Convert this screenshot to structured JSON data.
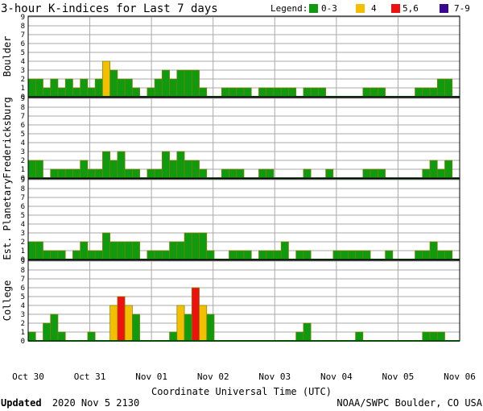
{
  "header": {
    "title": "3-hour K-indices for Last 7 days",
    "legend_label": "Legend:"
  },
  "legend": [
    {
      "label": "0-3",
      "color": "#109a10"
    },
    {
      "label": "4",
      "color": "#f2c000"
    },
    {
      "label": "5,6",
      "color": "#ee1111"
    },
    {
      "label": "7-9",
      "color": "#3a0890"
    }
  ],
  "axis": {
    "xlabel": "Coordinate Universal Time (UTC)",
    "dates": [
      "Oct 30",
      "Oct 31",
      "Nov 01",
      "Nov 02",
      "Nov 03",
      "Nov 04",
      "Nov 05",
      "Nov 06"
    ]
  },
  "footer": {
    "updated_label": "Updated",
    "updated_value": "2020 Nov  5 2130",
    "source": "NOAA/SWPC Boulder, CO USA"
  },
  "colors": {
    "grid": "#a9a9a9",
    "baseline": "#109a10",
    "bar_outline": "#808000"
  },
  "chart_data": {
    "type": "bar",
    "ylim": [
      0,
      9
    ],
    "yticks": [
      0,
      1,
      2,
      3,
      4,
      5,
      6,
      7,
      8,
      9
    ],
    "grid": true,
    "legend_position": "top-right",
    "panels": [
      {
        "name": "Boulder",
        "values": [
          2,
          2,
          1,
          2,
          1,
          2,
          1,
          2,
          1,
          2,
          4,
          3,
          2,
          2,
          1,
          0,
          1,
          2,
          3,
          2,
          3,
          3,
          3,
          1,
          0,
          0,
          1,
          1,
          1,
          1,
          0,
          1,
          1,
          1,
          1,
          1,
          0,
          1,
          1,
          1,
          0,
          0,
          0,
          0,
          0,
          1,
          1,
          1,
          0,
          0,
          0,
          0,
          1,
          1,
          1,
          2,
          2,
          0
        ]
      },
      {
        "name": "Fredericksburg",
        "values": [
          2,
          2,
          0,
          1,
          1,
          1,
          1,
          2,
          1,
          1,
          3,
          2,
          3,
          1,
          1,
          0,
          1,
          1,
          3,
          2,
          3,
          2,
          2,
          1,
          0,
          0,
          1,
          1,
          1,
          0,
          0,
          1,
          1,
          0,
          0,
          0,
          0,
          1,
          0,
          0,
          1,
          0,
          0,
          0,
          0,
          1,
          1,
          1,
          0,
          0,
          0,
          0,
          0,
          1,
          2,
          1,
          2,
          0
        ]
      },
      {
        "name": "Est. Planetary",
        "values": [
          2,
          2,
          1,
          1,
          1,
          0,
          1,
          2,
          1,
          1,
          3,
          2,
          2,
          2,
          2,
          0,
          1,
          1,
          1,
          2,
          2,
          3,
          3,
          3,
          1,
          0,
          0,
          1,
          1,
          1,
          0,
          1,
          1,
          1,
          2,
          0,
          1,
          1,
          0,
          0,
          0,
          1,
          1,
          1,
          1,
          1,
          0,
          0,
          1,
          0,
          0,
          0,
          1,
          1,
          2,
          1,
          1,
          0
        ]
      },
      {
        "name": "College",
        "values": [
          1,
          0,
          2,
          3,
          1,
          0,
          0,
          0,
          1,
          0,
          0,
          4,
          5,
          4,
          3,
          0,
          0,
          0,
          0,
          1,
          4,
          3,
          6,
          4,
          3,
          0,
          0,
          0,
          0,
          0,
          0,
          0,
          0,
          0,
          0,
          0,
          1,
          2,
          0,
          0,
          0,
          0,
          0,
          0,
          1,
          0,
          0,
          0,
          0,
          0,
          0,
          0,
          0,
          1,
          1,
          1,
          0,
          0
        ]
      }
    ]
  }
}
